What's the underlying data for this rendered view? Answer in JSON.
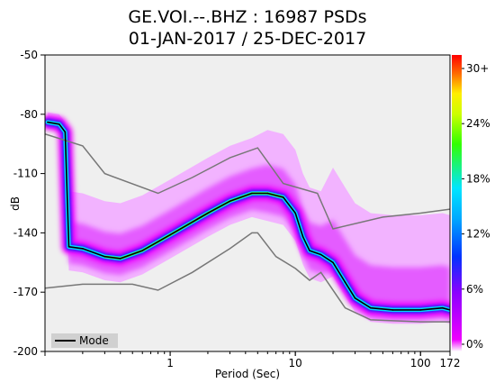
{
  "chart_data": {
    "type": "heatmap",
    "title_line1": "GE.VOI.--.BHZ : 16987 PSDs",
    "title_line2": "01-JAN-2017 / 25-DEC-2017",
    "xlabel": "Period (Sec)",
    "ylabel": "dB",
    "x_scale": "log",
    "xlim": [
      0.1,
      172
    ],
    "ylim": [
      -200,
      -50
    ],
    "x_ticks": [
      {
        "value": 1,
        "label": "1"
      },
      {
        "value": 10,
        "label": "10"
      },
      {
        "value": 100,
        "label": "100"
      },
      {
        "value": 172,
        "label": "172"
      }
    ],
    "y_ticks": [
      {
        "value": -50,
        "label": "-50"
      },
      {
        "value": -80,
        "label": "-80"
      },
      {
        "value": -110,
        "label": "-110"
      },
      {
        "value": -140,
        "label": "-140"
      },
      {
        "value": -170,
        "label": "-170"
      },
      {
        "value": -200,
        "label": "-200"
      }
    ],
    "colorbar": {
      "label_ticks": [
        "0%",
        "6%",
        "12%",
        "18%",
        "24%",
        "30+"
      ],
      "stops": [
        "#ffffff",
        "#ee00ff",
        "#0033ff",
        "#00e5ff",
        "#33ff00",
        "#ffee00",
        "#ff6600",
        "#ff0000"
      ]
    },
    "legend": {
      "position": "bottom-left",
      "entries": [
        {
          "label": "Mode",
          "color": "#000000"
        }
      ]
    },
    "series": [
      {
        "name": "Mode",
        "color": "#000000",
        "points": [
          [
            0.105,
            -84
          ],
          [
            0.13,
            -85
          ],
          [
            0.145,
            -89
          ],
          [
            0.155,
            -147
          ],
          [
            0.2,
            -148
          ],
          [
            0.3,
            -152
          ],
          [
            0.4,
            -153
          ],
          [
            0.6,
            -149
          ],
          [
            1.0,
            -141
          ],
          [
            2.0,
            -130
          ],
          [
            3.0,
            -124
          ],
          [
            4.5,
            -120
          ],
          [
            6.0,
            -120
          ],
          [
            8.0,
            -122
          ],
          [
            10.0,
            -130
          ],
          [
            11.5,
            -142
          ],
          [
            13.0,
            -149
          ],
          [
            16.0,
            -151
          ],
          [
            20.0,
            -155
          ],
          [
            25.0,
            -165
          ],
          [
            30.0,
            -173
          ],
          [
            40.0,
            -178
          ],
          [
            60.0,
            -179
          ],
          [
            100.0,
            -179
          ],
          [
            150.0,
            -178
          ],
          [
            172.0,
            -179
          ]
        ]
      }
    ],
    "nlnm": {
      "color": "#777777",
      "points": [
        [
          0.1,
          -168
        ],
        [
          0.2,
          -166
        ],
        [
          0.5,
          -166
        ],
        [
          0.8,
          -169
        ],
        [
          1.5,
          -160
        ],
        [
          3.0,
          -148
        ],
        [
          4.5,
          -140
        ],
        [
          5.0,
          -140
        ],
        [
          7.0,
          -152
        ],
        [
          10.0,
          -158
        ],
        [
          13.0,
          -164
        ],
        [
          16.0,
          -160
        ],
        [
          25.0,
          -178
        ],
        [
          40.0,
          -184
        ],
        [
          100.0,
          -185
        ],
        [
          172.0,
          -185
        ]
      ]
    },
    "nhnm": {
      "color": "#777777",
      "points": [
        [
          0.1,
          -90
        ],
        [
          0.2,
          -96
        ],
        [
          0.3,
          -110
        ],
        [
          0.8,
          -120
        ],
        [
          1.5,
          -112
        ],
        [
          3.0,
          -102
        ],
        [
          5.0,
          -97
        ],
        [
          8.0,
          -115
        ],
        [
          15.0,
          -120
        ],
        [
          20.0,
          -138
        ],
        [
          50.0,
          -132
        ],
        [
          100.0,
          -130
        ],
        [
          172.0,
          -128
        ]
      ]
    }
  }
}
